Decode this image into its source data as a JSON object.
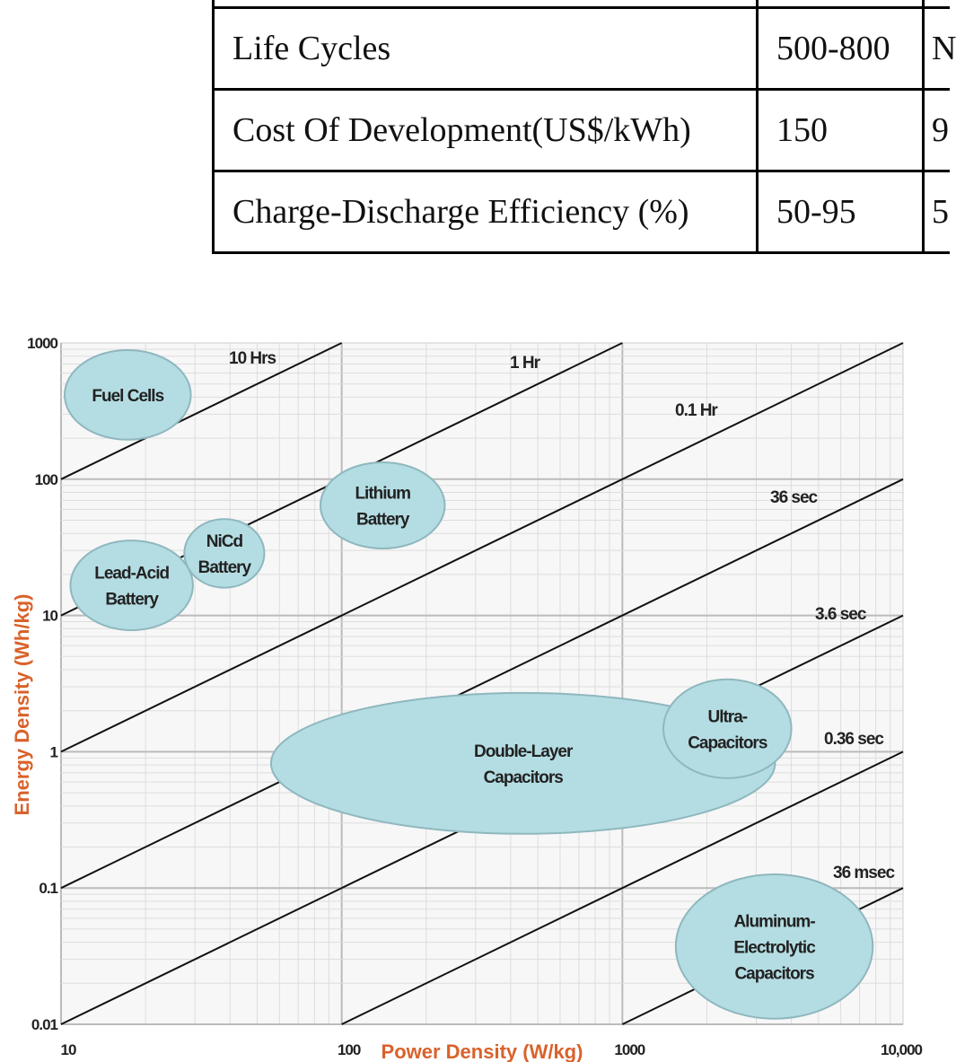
{
  "table": {
    "rows": [
      {
        "label": "",
        "col1": "",
        "col2": ""
      },
      {
        "label": "Life Cycles",
        "col1": "500-800",
        "col2": "N"
      },
      {
        "label": "Cost Of Development(US$/kWh)",
        "col1": "150",
        "col2": "9"
      },
      {
        "label": "Charge-Discharge Efficiency (%)",
        "col1": "50-95",
        "col2": "5"
      }
    ]
  },
  "chart_data": {
    "type": "scatter",
    "xlabel": "Power Density (W/kg)",
    "ylabel": "Energy Density (Wh/kg)",
    "xscale": "log",
    "yscale": "log",
    "xlim": [
      10,
      10000
    ],
    "ylim": [
      0.01,
      1000
    ],
    "xticks": [
      "10",
      "100",
      "1000",
      "10,000"
    ],
    "yticks": [
      "0.01",
      "0.1",
      "1",
      "10",
      "100",
      "1000"
    ],
    "grid": true,
    "colors": {
      "region_fill": "#b4dde3",
      "region_stroke": "#8fb7be",
      "axis_label": "#d9622b",
      "lines": "#111111"
    },
    "time_lines": [
      {
        "label": "10 Hrs",
        "hours": 10
      },
      {
        "label": "1 Hr",
        "hours": 1
      },
      {
        "label": "0.1 Hr",
        "hours": 0.1
      },
      {
        "label": "36 sec",
        "hours": 0.01
      },
      {
        "label": "3.6 sec",
        "hours": 0.001
      },
      {
        "label": "0.36 sec",
        "hours": 0.0001
      },
      {
        "label": "36 msec",
        "hours": 1e-05
      }
    ],
    "regions": [
      {
        "name": "Double-Layer Capacitors",
        "lines": [
          "Double-Layer",
          "Capacitors"
        ],
        "power": [
          56,
          3500
        ],
        "energy": [
          0.25,
          2.7
        ]
      },
      {
        "name": "Fuel Cells",
        "lines": [
          "Fuel Cells"
        ],
        "power": [
          10.3,
          29
        ],
        "energy": [
          195,
          886
        ]
      },
      {
        "name": "Lithium Battery",
        "lines": [
          "Lithium",
          "Battery"
        ],
        "power": [
          84,
          233
        ],
        "energy": [
          31,
          133
        ]
      },
      {
        "name": "Lead-Acid Battery",
        "lines": [
          "Lead-Acid",
          "Battery"
        ],
        "power": [
          10.8,
          29.5
        ],
        "energy": [
          7.8,
          35.5
        ]
      },
      {
        "name": "NiCd Battery",
        "lines": [
          "NiCd",
          "Battery"
        ],
        "power": [
          27.5,
          53
        ],
        "energy": [
          16,
          51
        ]
      },
      {
        "name": "Ultra-Capacitors",
        "lines": [
          "Ultra-",
          "Capacitors"
        ],
        "power": [
          1400,
          4000
        ],
        "energy": [
          0.64,
          3.4
        ]
      },
      {
        "name": "Aluminum-Electrolytic Capacitors",
        "lines": [
          "Aluminum-",
          "Electrolytic",
          "Capacitors"
        ],
        "power": [
          1550,
          7800
        ],
        "energy": [
          0.011,
          0.126
        ]
      }
    ]
  }
}
